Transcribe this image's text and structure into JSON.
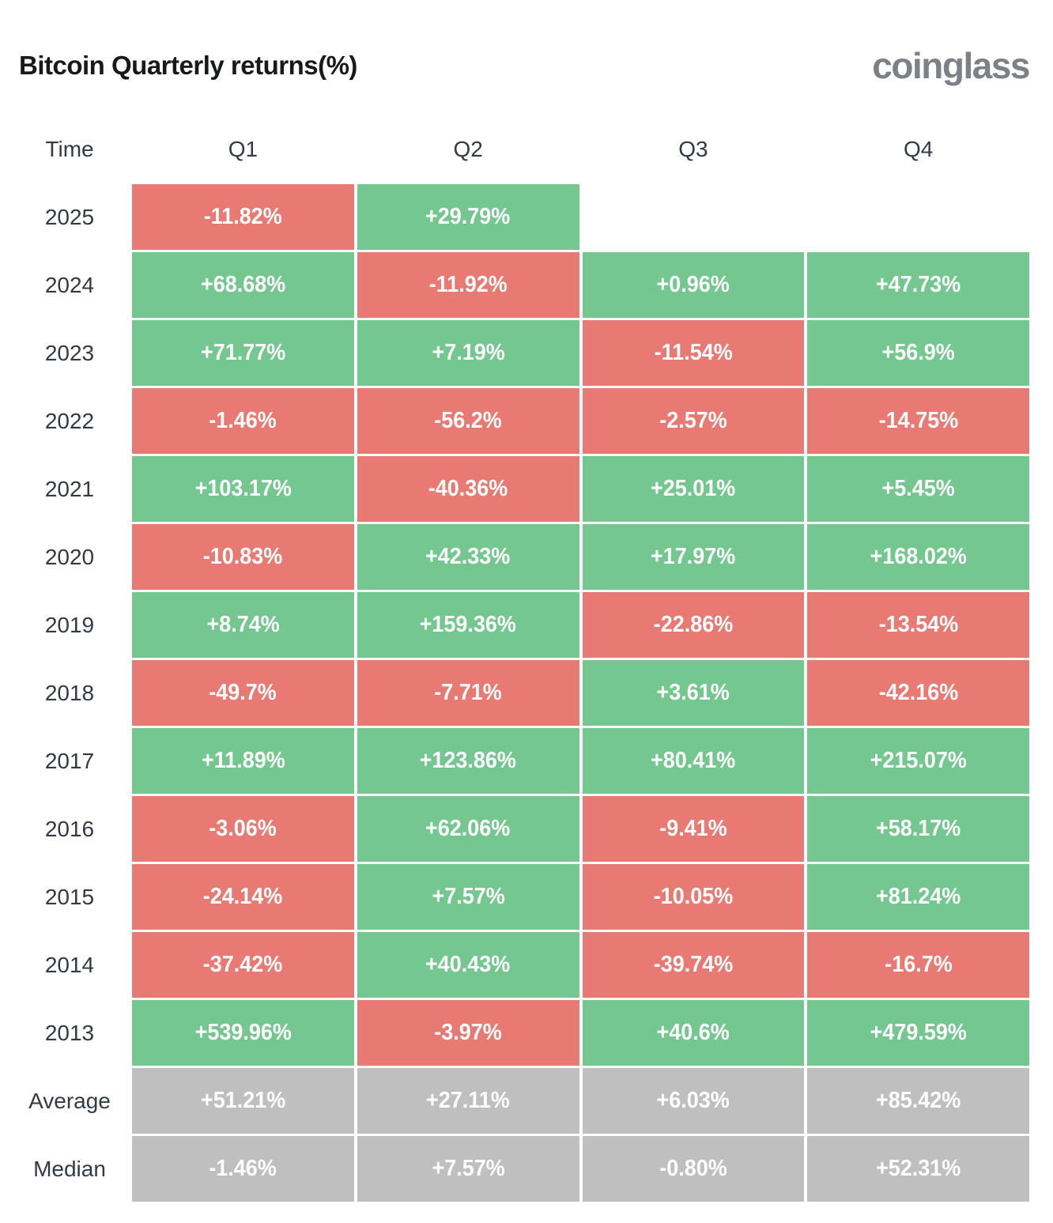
{
  "header": {
    "title": "Bitcoin Quarterly returns(%)",
    "logo": "coinglass"
  },
  "colors": {
    "positive": "#74c78f",
    "negative": "#e87a73",
    "neutral": "#bfbfbf",
    "cell_text": "#ffffff",
    "label_text": "#323a45",
    "title_text": "#16191d",
    "logo_text": "#7d8187"
  },
  "table": {
    "columns": [
      "Time",
      "Q1",
      "Q2",
      "Q3",
      "Q4"
    ],
    "rows": [
      {
        "label": "2025",
        "cells": [
          {
            "text": "-11.82%",
            "type": "negative"
          },
          {
            "text": "+29.79%",
            "type": "positive"
          },
          {
            "text": "",
            "type": "empty"
          },
          {
            "text": "",
            "type": "empty"
          }
        ]
      },
      {
        "label": "2024",
        "cells": [
          {
            "text": "+68.68%",
            "type": "positive"
          },
          {
            "text": "-11.92%",
            "type": "negative"
          },
          {
            "text": "+0.96%",
            "type": "positive"
          },
          {
            "text": "+47.73%",
            "type": "positive"
          }
        ]
      },
      {
        "label": "2023",
        "cells": [
          {
            "text": "+71.77%",
            "type": "positive"
          },
          {
            "text": "+7.19%",
            "type": "positive"
          },
          {
            "text": "-11.54%",
            "type": "negative"
          },
          {
            "text": "+56.9%",
            "type": "positive"
          }
        ]
      },
      {
        "label": "2022",
        "cells": [
          {
            "text": "-1.46%",
            "type": "negative"
          },
          {
            "text": "-56.2%",
            "type": "negative"
          },
          {
            "text": "-2.57%",
            "type": "negative"
          },
          {
            "text": "-14.75%",
            "type": "negative"
          }
        ]
      },
      {
        "label": "2021",
        "cells": [
          {
            "text": "+103.17%",
            "type": "positive"
          },
          {
            "text": "-40.36%",
            "type": "negative"
          },
          {
            "text": "+25.01%",
            "type": "positive"
          },
          {
            "text": "+5.45%",
            "type": "positive"
          }
        ]
      },
      {
        "label": "2020",
        "cells": [
          {
            "text": "-10.83%",
            "type": "negative"
          },
          {
            "text": "+42.33%",
            "type": "positive"
          },
          {
            "text": "+17.97%",
            "type": "positive"
          },
          {
            "text": "+168.02%",
            "type": "positive"
          }
        ]
      },
      {
        "label": "2019",
        "cells": [
          {
            "text": "+8.74%",
            "type": "positive"
          },
          {
            "text": "+159.36%",
            "type": "positive"
          },
          {
            "text": "-22.86%",
            "type": "negative"
          },
          {
            "text": "-13.54%",
            "type": "negative"
          }
        ]
      },
      {
        "label": "2018",
        "cells": [
          {
            "text": "-49.7%",
            "type": "negative"
          },
          {
            "text": "-7.71%",
            "type": "negative"
          },
          {
            "text": "+3.61%",
            "type": "positive"
          },
          {
            "text": "-42.16%",
            "type": "negative"
          }
        ]
      },
      {
        "label": "2017",
        "cells": [
          {
            "text": "+11.89%",
            "type": "positive"
          },
          {
            "text": "+123.86%",
            "type": "positive"
          },
          {
            "text": "+80.41%",
            "type": "positive"
          },
          {
            "text": "+215.07%",
            "type": "positive"
          }
        ]
      },
      {
        "label": "2016",
        "cells": [
          {
            "text": "-3.06%",
            "type": "negative"
          },
          {
            "text": "+62.06%",
            "type": "positive"
          },
          {
            "text": "-9.41%",
            "type": "negative"
          },
          {
            "text": "+58.17%",
            "type": "positive"
          }
        ]
      },
      {
        "label": "2015",
        "cells": [
          {
            "text": "-24.14%",
            "type": "negative"
          },
          {
            "text": "+7.57%",
            "type": "positive"
          },
          {
            "text": "-10.05%",
            "type": "negative"
          },
          {
            "text": "+81.24%",
            "type": "positive"
          }
        ]
      },
      {
        "label": "2014",
        "cells": [
          {
            "text": "-37.42%",
            "type": "negative"
          },
          {
            "text": "+40.43%",
            "type": "positive"
          },
          {
            "text": "-39.74%",
            "type": "negative"
          },
          {
            "text": "-16.7%",
            "type": "negative"
          }
        ]
      },
      {
        "label": "2013",
        "cells": [
          {
            "text": "+539.96%",
            "type": "positive"
          },
          {
            "text": "-3.97%",
            "type": "negative"
          },
          {
            "text": "+40.6%",
            "type": "positive"
          },
          {
            "text": "+479.59%",
            "type": "positive"
          }
        ]
      },
      {
        "label": "Average",
        "cells": [
          {
            "text": "+51.21%",
            "type": "neutral"
          },
          {
            "text": "+27.11%",
            "type": "neutral"
          },
          {
            "text": "+6.03%",
            "type": "neutral"
          },
          {
            "text": "+85.42%",
            "type": "neutral"
          }
        ]
      },
      {
        "label": "Median",
        "cells": [
          {
            "text": "-1.46%",
            "type": "neutral"
          },
          {
            "text": "+7.57%",
            "type": "neutral"
          },
          {
            "text": "-0.80%",
            "type": "neutral"
          },
          {
            "text": "+52.31%",
            "type": "neutral"
          }
        ]
      }
    ]
  },
  "chart_data": {
    "type": "heatmap",
    "title": "Bitcoin Quarterly returns(%)",
    "source": "coinglass",
    "columns": [
      "Q1",
      "Q2",
      "Q3",
      "Q4"
    ],
    "rows": [
      "2025",
      "2024",
      "2023",
      "2022",
      "2021",
      "2020",
      "2019",
      "2018",
      "2017",
      "2016",
      "2015",
      "2014",
      "2013",
      "Average",
      "Median"
    ],
    "values_percent": [
      [
        -11.82,
        29.79,
        null,
        null
      ],
      [
        68.68,
        -11.92,
        0.96,
        47.73
      ],
      [
        71.77,
        7.19,
        -11.54,
        56.9
      ],
      [
        -1.46,
        -56.2,
        -2.57,
        -14.75
      ],
      [
        103.17,
        -40.36,
        25.01,
        5.45
      ],
      [
        -10.83,
        42.33,
        17.97,
        168.02
      ],
      [
        8.74,
        159.36,
        -22.86,
        -13.54
      ],
      [
        -49.7,
        -7.71,
        3.61,
        -42.16
      ],
      [
        11.89,
        123.86,
        80.41,
        215.07
      ],
      [
        -3.06,
        62.06,
        -9.41,
        58.17
      ],
      [
        -24.14,
        7.57,
        -10.05,
        81.24
      ],
      [
        -37.42,
        40.43,
        -39.74,
        -16.7
      ],
      [
        539.96,
        -3.97,
        40.6,
        479.59
      ],
      [
        51.21,
        27.11,
        6.03,
        85.42
      ],
      [
        -1.46,
        7.57,
        -0.8,
        52.31
      ]
    ],
    "color_coding": {
      "positive": "green",
      "negative": "red",
      "summary_rows": "gray"
    },
    "layout": {
      "grid": "table heatmap",
      "summary_rows": [
        "Average",
        "Median"
      ],
      "empty_cells": [
        [
          "2025",
          "Q3"
        ],
        [
          "2025",
          "Q4"
        ]
      ]
    }
  }
}
